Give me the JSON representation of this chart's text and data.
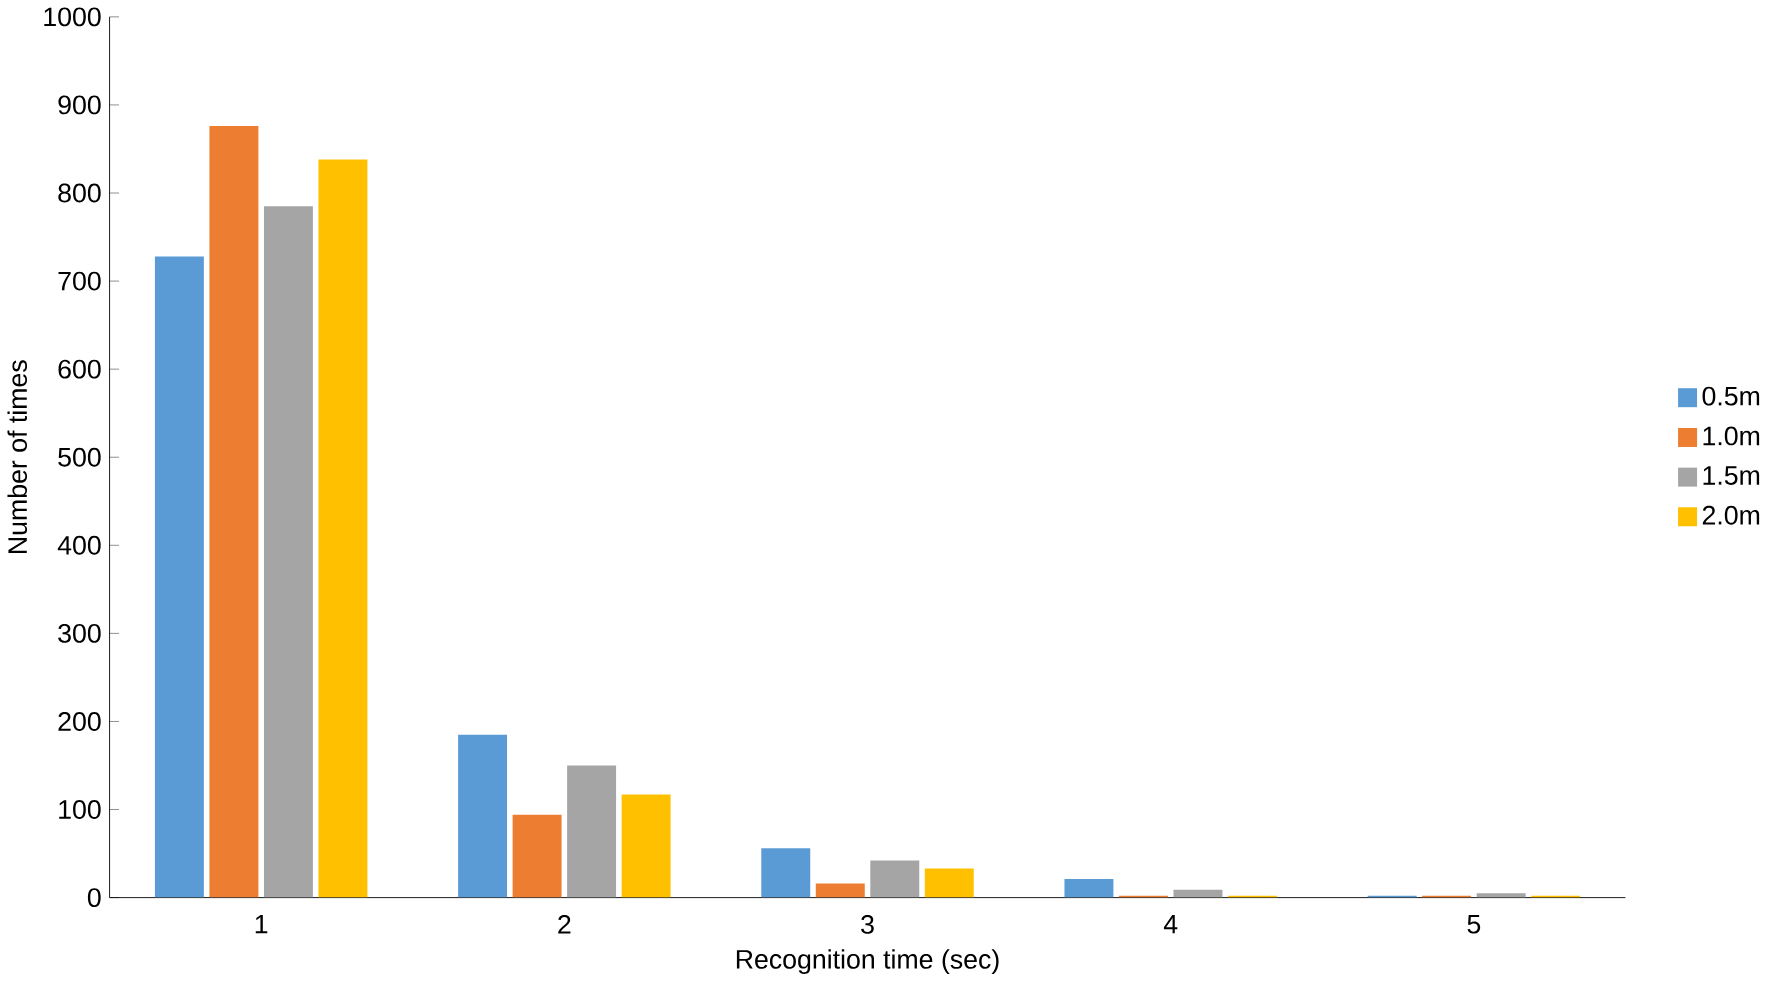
{
  "chart_data": {
    "type": "bar",
    "xlabel": "Recognition time (sec)",
    "ylabel": "Number of times",
    "categories": [
      "1",
      "2",
      "3",
      "4",
      "5"
    ],
    "series": [
      {
        "name": "0.5m",
        "color": "#5b9bd5",
        "values": [
          728,
          185,
          56,
          21,
          2
        ]
      },
      {
        "name": "1.0m",
        "color": "#ed7d31",
        "values": [
          876,
          94,
          16,
          2,
          2
        ]
      },
      {
        "name": "1.5m",
        "color": "#a5a5a5",
        "values": [
          785,
          150,
          42,
          9,
          5
        ]
      },
      {
        "name": "2.0m",
        "color": "#ffc000",
        "values": [
          838,
          117,
          33,
          2,
          2
        ]
      }
    ],
    "ylim": [
      0,
      1000
    ],
    "yticks": [
      0,
      100,
      200,
      300,
      400,
      500,
      600,
      700,
      800,
      900,
      1000
    ],
    "grid": false,
    "legend": "right"
  }
}
